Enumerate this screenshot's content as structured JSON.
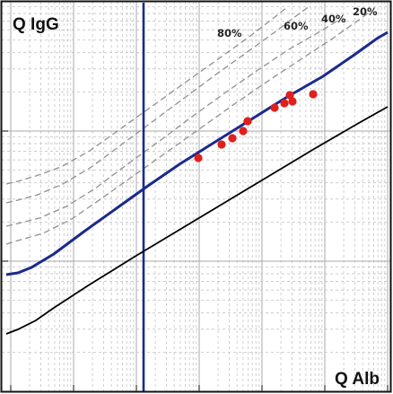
{
  "chart_data": {
    "type": "scatter",
    "title": "",
    "ylabel": "Q IgG",
    "xlabel": "Q Alb",
    "grid": true,
    "colors": {
      "frame": "#111111",
      "grid_major": "#a8a8a8",
      "grid_minor": "#c4c4c4",
      "upper_reference_line": "#1a2a8c",
      "vertical_reference_line": "#1a2a8c",
      "lower_reference_line": "#000000",
      "intrathecal_fraction_lines": "#909090",
      "points": "#e0201c"
    },
    "intrathecal_fraction_labels": [
      "80%",
      "60%",
      "40%",
      "20%"
    ],
    "points_count": 10
  }
}
